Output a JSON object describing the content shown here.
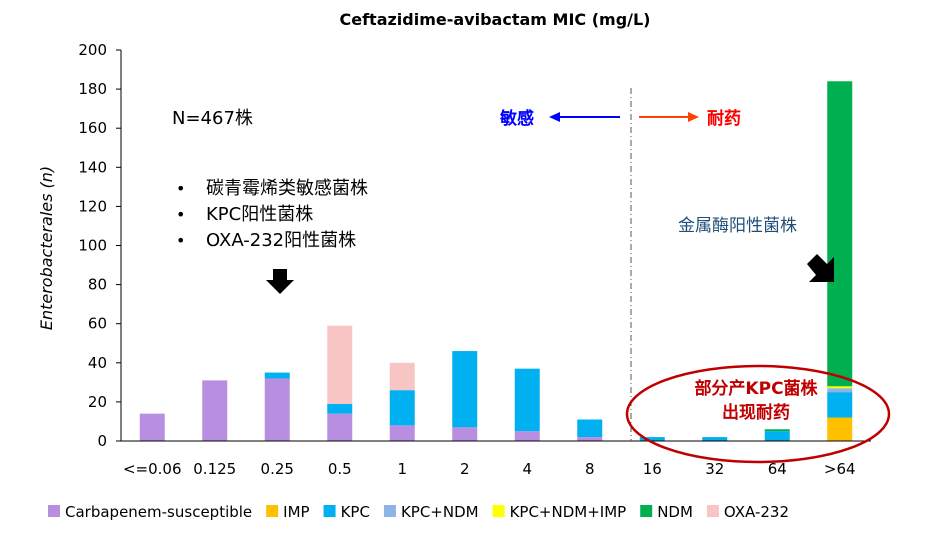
{
  "chart_data": {
    "type": "bar",
    "stacked": true,
    "title": "Ceftazidime-avibactam MIC (mg/L)",
    "xlabel": "",
    "ylabel": "Enterobacterales (n)",
    "ylim": [
      0,
      200
    ],
    "yticks": [
      0,
      20,
      40,
      60,
      80,
      100,
      120,
      140,
      160,
      180,
      200
    ],
    "categories": [
      "<=0.06",
      "0.125",
      "0.25",
      "0.5",
      "1",
      "2",
      "4",
      "8",
      "16",
      "32",
      "64",
      ">64"
    ],
    "series": [
      {
        "name": "Carbapenem-susceptible",
        "color": "#b88fe0",
        "values": [
          14,
          31,
          32,
          14,
          8,
          7,
          5,
          2,
          0,
          0,
          0,
          0
        ]
      },
      {
        "name": "IMP",
        "color": "#ffc000",
        "values": [
          0,
          0,
          0,
          0,
          0,
          0,
          0,
          0,
          0,
          0,
          0,
          12
        ]
      },
      {
        "name": "KPC",
        "color": "#00b0f0",
        "values": [
          0,
          0,
          3,
          5,
          18,
          39,
          32,
          9,
          2,
          2,
          5,
          13
        ]
      },
      {
        "name": "KPC+NDM",
        "color": "#8eb4e3",
        "values": [
          0,
          0,
          0,
          0,
          0,
          0,
          0,
          0,
          0,
          0,
          0,
          2
        ]
      },
      {
        "name": "KPC+NDM+IMP",
        "color": "#ffff00",
        "values": [
          0,
          0,
          0,
          0,
          0,
          0,
          0,
          0,
          0,
          0,
          0,
          1
        ]
      },
      {
        "name": "NDM",
        "color": "#00b050",
        "values": [
          0,
          0,
          0,
          0,
          0,
          0,
          0,
          0,
          0,
          0,
          1,
          156
        ]
      },
      {
        "name": "OXA-232",
        "color": "#f8c5c5",
        "values": [
          0,
          0,
          0,
          40,
          14,
          0,
          0,
          0,
          0,
          0,
          0,
          0
        ]
      }
    ],
    "annotations": {
      "n_total": "N=467株",
      "bullets": [
        "碳青霉烯类敏感菌株",
        "KPC阳性菌株",
        "OXA-232阳性菌株"
      ],
      "sensitive": "敏感",
      "resistant": "耐药",
      "metallo": "金属酶阳性菌株",
      "kpc_resist_line1": "部分产KPC菌株",
      "kpc_resist_line2": "出现耐药",
      "bullet_char": "•"
    },
    "colors": {
      "sensitive": "#0000ff",
      "resistant": "#ff0000",
      "metallo": "#1f4e79",
      "kpc_resist": "#c00000",
      "ellipse": "#c00000",
      "arrow_blue": "#0000ff",
      "arrow_red": "#ff4000"
    }
  }
}
